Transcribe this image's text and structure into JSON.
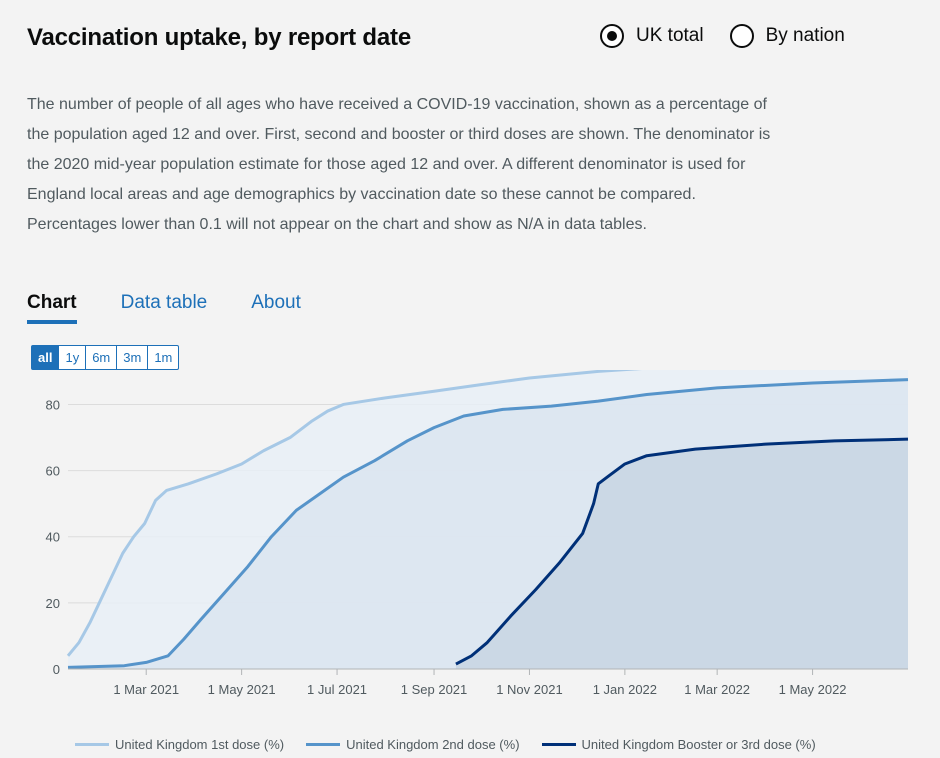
{
  "header": {
    "title": "Vaccination uptake, by report date"
  },
  "radios": [
    {
      "label": "UK total",
      "checked": true
    },
    {
      "label": "By nation",
      "checked": false
    }
  ],
  "description": "The number of people of all ages who have received a COVID-19 vaccination, shown as a percentage of the population aged 12 and over. First, second and booster or third doses are shown. The denominator is the 2020 mid-year population estimate for those aged 12 and over. A different denominator is used for England local areas and age demographics by vaccination date so these cannot be compared. Percentages lower than 0.1 will not appear on the chart and show as N/A in data tables.",
  "tabs": [
    {
      "label": "Chart",
      "active": true
    },
    {
      "label": "Data table",
      "active": false
    },
    {
      "label": "About",
      "active": false
    }
  ],
  "ranges": [
    {
      "label": "all",
      "active": true
    },
    {
      "label": "1y",
      "active": false
    },
    {
      "label": "6m",
      "active": false
    },
    {
      "label": "3m",
      "active": false
    },
    {
      "label": "1m",
      "active": false
    }
  ],
  "chart_data": {
    "type": "area",
    "title": "",
    "xlabel": "",
    "ylabel": "",
    "xlim": [
      "2021-01-10",
      "2022-07-01"
    ],
    "ylim": [
      0,
      88
    ],
    "y_ticks": [
      0,
      20,
      40,
      60,
      80
    ],
    "x_ticks": [
      {
        "date": "2021-03-01",
        "label": "1 Mar 2021"
      },
      {
        "date": "2021-05-01",
        "label": "1 May 2021"
      },
      {
        "date": "2021-07-01",
        "label": "1 Jul 2021"
      },
      {
        "date": "2021-09-01",
        "label": "1 Sep 2021"
      },
      {
        "date": "2021-11-01",
        "label": "1 Nov 2021"
      },
      {
        "date": "2022-01-01",
        "label": "1 Jan 2022"
      },
      {
        "date": "2022-03-01",
        "label": "1 Mar 2022"
      },
      {
        "date": "2022-05-01",
        "label": "1 May 2022"
      }
    ],
    "grid": "horizontal",
    "legend_position": "bottom",
    "series": [
      {
        "name": "United Kingdom 1st dose (%)",
        "color": "#a6c8e6",
        "fill": "#e7eef6",
        "points": [
          [
            "2021-01-10",
            4
          ],
          [
            "2021-01-17",
            8
          ],
          [
            "2021-01-24",
            14
          ],
          [
            "2021-01-31",
            21
          ],
          [
            "2021-02-07",
            28
          ],
          [
            "2021-02-14",
            35
          ],
          [
            "2021-02-21",
            40
          ],
          [
            "2021-02-28",
            44
          ],
          [
            "2021-03-07",
            51
          ],
          [
            "2021-03-14",
            54
          ],
          [
            "2021-03-28",
            56
          ],
          [
            "2021-04-15",
            59
          ],
          [
            "2021-05-01",
            62
          ],
          [
            "2021-05-15",
            66
          ],
          [
            "2021-06-01",
            70
          ],
          [
            "2021-06-15",
            75
          ],
          [
            "2021-06-25",
            78
          ],
          [
            "2021-07-05",
            80
          ],
          [
            "2021-08-01",
            82
          ],
          [
            "2021-09-01",
            84
          ],
          [
            "2021-10-01",
            86
          ],
          [
            "2021-11-01",
            88
          ],
          [
            "2021-12-15",
            90
          ],
          [
            "2022-02-01",
            91.5
          ],
          [
            "2022-04-01",
            92.5
          ],
          [
            "2022-07-01",
            93
          ]
        ]
      },
      {
        "name": "United Kingdom 2nd dose (%)",
        "color": "#5694ca",
        "fill": "#dbe5f0",
        "points": [
          [
            "2021-01-10",
            0.5
          ],
          [
            "2021-02-15",
            1
          ],
          [
            "2021-03-01",
            2
          ],
          [
            "2021-03-15",
            4
          ],
          [
            "2021-03-25",
            9
          ],
          [
            "2021-04-05",
            15
          ],
          [
            "2021-04-20",
            23
          ],
          [
            "2021-05-05",
            31
          ],
          [
            "2021-05-20",
            40
          ],
          [
            "2021-06-05",
            48
          ],
          [
            "2021-06-20",
            53
          ],
          [
            "2021-07-05",
            58
          ],
          [
            "2021-07-25",
            63
          ],
          [
            "2021-08-15",
            69
          ],
          [
            "2021-09-01",
            73
          ],
          [
            "2021-09-20",
            76.5
          ],
          [
            "2021-10-15",
            78.5
          ],
          [
            "2021-11-15",
            79.5
          ],
          [
            "2021-12-15",
            81
          ],
          [
            "2022-01-15",
            83
          ],
          [
            "2022-03-01",
            85
          ],
          [
            "2022-05-01",
            86.5
          ],
          [
            "2022-07-01",
            87.5
          ]
        ]
      },
      {
        "name": "United Kingdom Booster or 3rd dose (%)",
        "color": "#003078",
        "fill": "#c8d5e3",
        "points": [
          [
            "2021-09-15",
            1.5
          ],
          [
            "2021-09-25",
            4
          ],
          [
            "2021-10-05",
            8
          ],
          [
            "2021-10-20",
            16
          ],
          [
            "2021-11-05",
            24
          ],
          [
            "2021-11-20",
            32
          ],
          [
            "2021-12-05",
            41
          ],
          [
            "2021-12-12",
            50
          ],
          [
            "2021-12-15",
            56
          ],
          [
            "2021-12-22",
            58.5
          ],
          [
            "2022-01-01",
            62
          ],
          [
            "2022-01-15",
            64.5
          ],
          [
            "2022-02-15",
            66.5
          ],
          [
            "2022-04-01",
            68
          ],
          [
            "2022-05-15",
            69
          ],
          [
            "2022-07-01",
            69.5
          ]
        ]
      }
    ]
  }
}
